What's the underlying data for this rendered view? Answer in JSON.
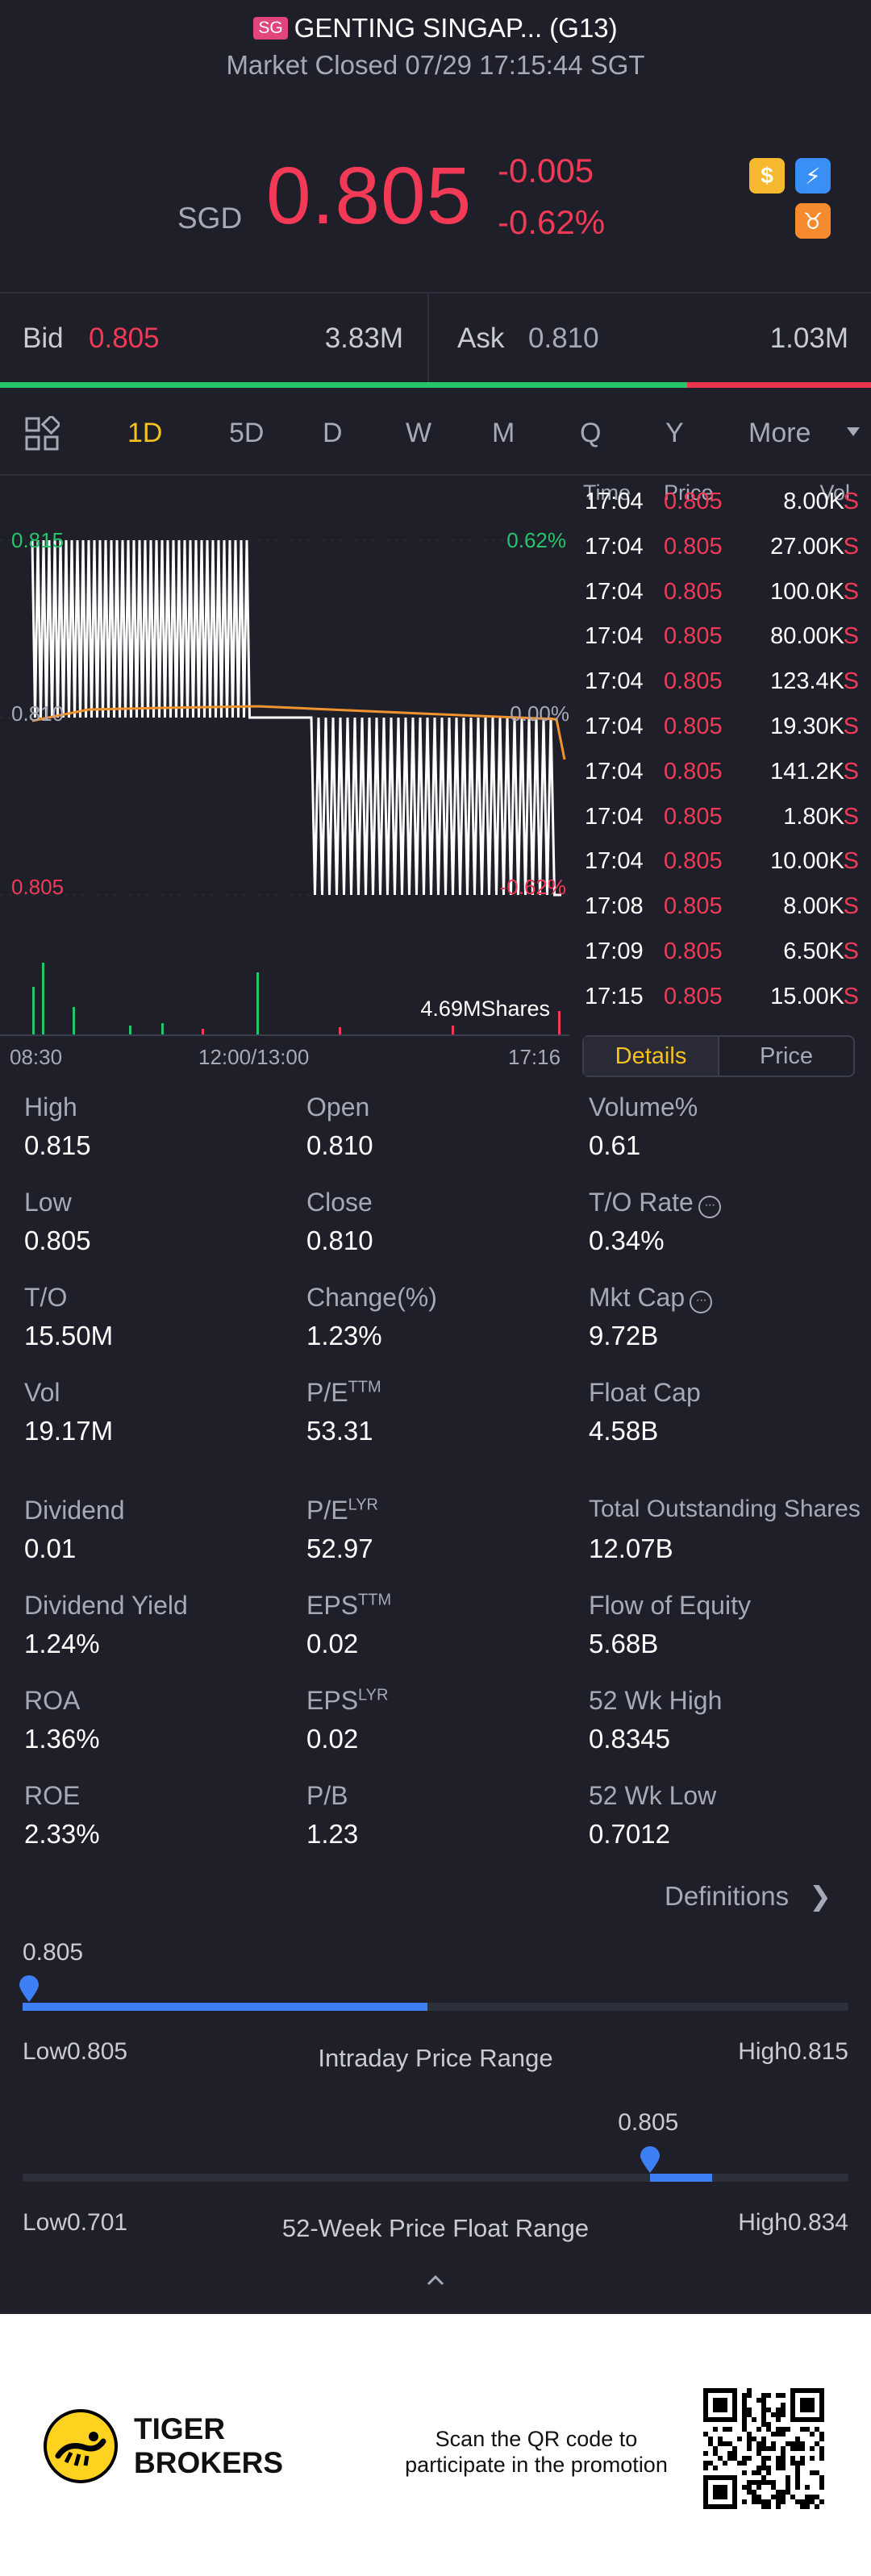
{
  "header": {
    "badge": "SG",
    "title": "GENTING SINGAP... (G13)",
    "status": "Market Closed 07/29 17:15:44 SGT",
    "currency": "SGD",
    "last_price": "0.805",
    "change": "-0.005",
    "change_pct": "-0.62%",
    "icons": [
      "dollar-coin-icon",
      "lightning-icon",
      "brand-logo-icon"
    ]
  },
  "quote": {
    "bid_label": "Bid",
    "bid_price": "0.805",
    "bid_size": "3.83M",
    "ask_label": "Ask",
    "ask_price": "0.810",
    "ask_size": "1.03M",
    "bid_share": 0.79
  },
  "tabs": [
    "1D",
    "5D",
    "D",
    "W",
    "M",
    "Q",
    "Y",
    "More"
  ],
  "active_tab": "1D",
  "chart_data": {
    "type": "line",
    "y_labels": {
      "top": "0.815",
      "mid": "0.810",
      "bottom": "0.805"
    },
    "pct_labels": {
      "top": "0.62%",
      "mid": "0.00%",
      "bottom": "-0.62%"
    },
    "x_labels": [
      "08:30",
      "12:00/13:00",
      "17:16"
    ],
    "volume_label": "4.69MShares",
    "ylim": [
      0.805,
      0.815
    ],
    "colors": {
      "price": "#ffffff",
      "avg": "#f0922e",
      "up": "#26c46b",
      "down": "#f23a57"
    }
  },
  "ticks": {
    "headers": [
      "Time",
      "Price",
      "Vol"
    ],
    "rows": [
      {
        "time": "17:04",
        "price": "0.805",
        "vol": "8.00K",
        "side": "S"
      },
      {
        "time": "17:04",
        "price": "0.805",
        "vol": "27.00K",
        "side": "S"
      },
      {
        "time": "17:04",
        "price": "0.805",
        "vol": "100.0K",
        "side": "S"
      },
      {
        "time": "17:04",
        "price": "0.805",
        "vol": "80.00K",
        "side": "S"
      },
      {
        "time": "17:04",
        "price": "0.805",
        "vol": "123.4K",
        "side": "S"
      },
      {
        "time": "17:04",
        "price": "0.805",
        "vol": "19.30K",
        "side": "S"
      },
      {
        "time": "17:04",
        "price": "0.805",
        "vol": "141.2K",
        "side": "S"
      },
      {
        "time": "17:04",
        "price": "0.805",
        "vol": "1.80K",
        "side": "S"
      },
      {
        "time": "17:04",
        "price": "0.805",
        "vol": "10.00K",
        "side": "S"
      },
      {
        "time": "17:08",
        "price": "0.805",
        "vol": "8.00K",
        "side": "S"
      },
      {
        "time": "17:09",
        "price": "0.805",
        "vol": "6.50K",
        "side": "S"
      },
      {
        "time": "17:15",
        "price": "0.805",
        "vol": "15.00K",
        "side": "S"
      }
    ],
    "toggle": [
      "Details",
      "Price"
    ]
  },
  "stats": [
    [
      {
        "label": "High",
        "value": "0.815"
      },
      {
        "label": "Open",
        "value": "0.810"
      },
      {
        "label": "Volume%",
        "value": "0.61"
      }
    ],
    [
      {
        "label": "Low",
        "value": "0.805"
      },
      {
        "label": "Close",
        "value": "0.810"
      },
      {
        "label": "T/O Rate",
        "value": "0.34%"
      }
    ],
    [
      {
        "label": "T/O",
        "value": "15.50M"
      },
      {
        "label": "Change(%)",
        "value": "1.23%"
      },
      {
        "label": "Mkt Cap",
        "value": "9.72B"
      }
    ],
    [
      {
        "label": "Vol",
        "value": "19.17M"
      },
      {
        "label": "P/E",
        "sup": "TTM",
        "value": "53.31"
      },
      {
        "label": "Float Cap",
        "value": "4.58B"
      }
    ],
    [
      {
        "label": "Dividend",
        "value": "0.01"
      },
      {
        "label": "P/E",
        "sup": "LYR",
        "value": "52.97"
      },
      {
        "label": "Total Outstanding Shares",
        "value": "12.07B"
      }
    ],
    [
      {
        "label": "Dividend Yield",
        "value": "1.24%"
      },
      {
        "label": "EPS",
        "sup": "TTM",
        "value": "0.02"
      },
      {
        "label": "Flow of Equity",
        "value": "5.68B"
      }
    ],
    [
      {
        "label": "ROA",
        "value": "1.36%"
      },
      {
        "label": "EPS",
        "sup": "LYR",
        "value": "0.02"
      },
      {
        "label": "52 Wk High",
        "value": "0.8345"
      }
    ],
    [
      {
        "label": "ROE",
        "value": "2.33%"
      },
      {
        "label": "P/B",
        "value": "1.23"
      },
      {
        "label": "52 Wk Low",
        "value": "0.7012"
      }
    ]
  ],
  "definitions_label": "Definitions",
  "intraday_range": {
    "current": "0.805",
    "low_label": "Low0.805",
    "high_label": "High0.815",
    "title": "Intraday Price Range",
    "current_pos": 0.0,
    "fill_to": 0.49
  },
  "week52_range": {
    "current": "0.805",
    "low_label": "Low0.701",
    "high_label": "High0.834",
    "title": "52-Week Price Float Range",
    "current_pos": 0.76,
    "fill_to": 0.835
  },
  "footer": {
    "brand_line1": "TIGER",
    "brand_line2": "BROKERS",
    "promo_line1": "Scan the QR code to",
    "promo_line2": "participate in the promotion"
  }
}
